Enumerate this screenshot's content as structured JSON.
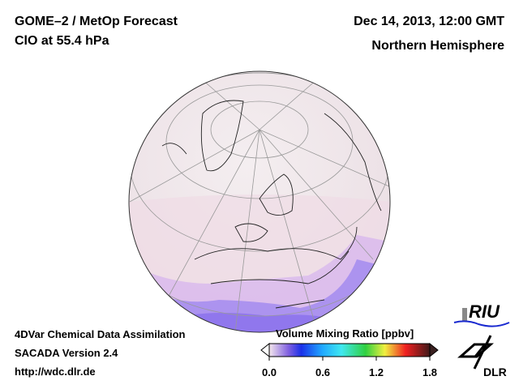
{
  "header": {
    "title": "GOME–2 / MetOp Forecast",
    "species": "ClO at 55.4 hPa",
    "datetime": "Dec 14, 2013, 12:00 GMT",
    "region": "Northern Hemisphere"
  },
  "footer": {
    "line1": "4DVar Chemical Data Assimilation",
    "line2": "SACADA Version 2.4",
    "line3": "http://wdc.dlr.de"
  },
  "colorbar": {
    "title": "Volume Mixing Ratio [ppbv]",
    "ticks": [
      "0.0",
      "0.6",
      "1.2",
      "1.8"
    ],
    "range": [
      0.0,
      1.8
    ],
    "colors": [
      "#f3e6ec",
      "#2020e0",
      "#20a0ff",
      "#40e0f0",
      "#30d040",
      "#f0f040",
      "#f08030",
      "#f01020",
      "#402020"
    ]
  },
  "logos": {
    "riu": "RIU",
    "dlr": "DLR"
  }
}
